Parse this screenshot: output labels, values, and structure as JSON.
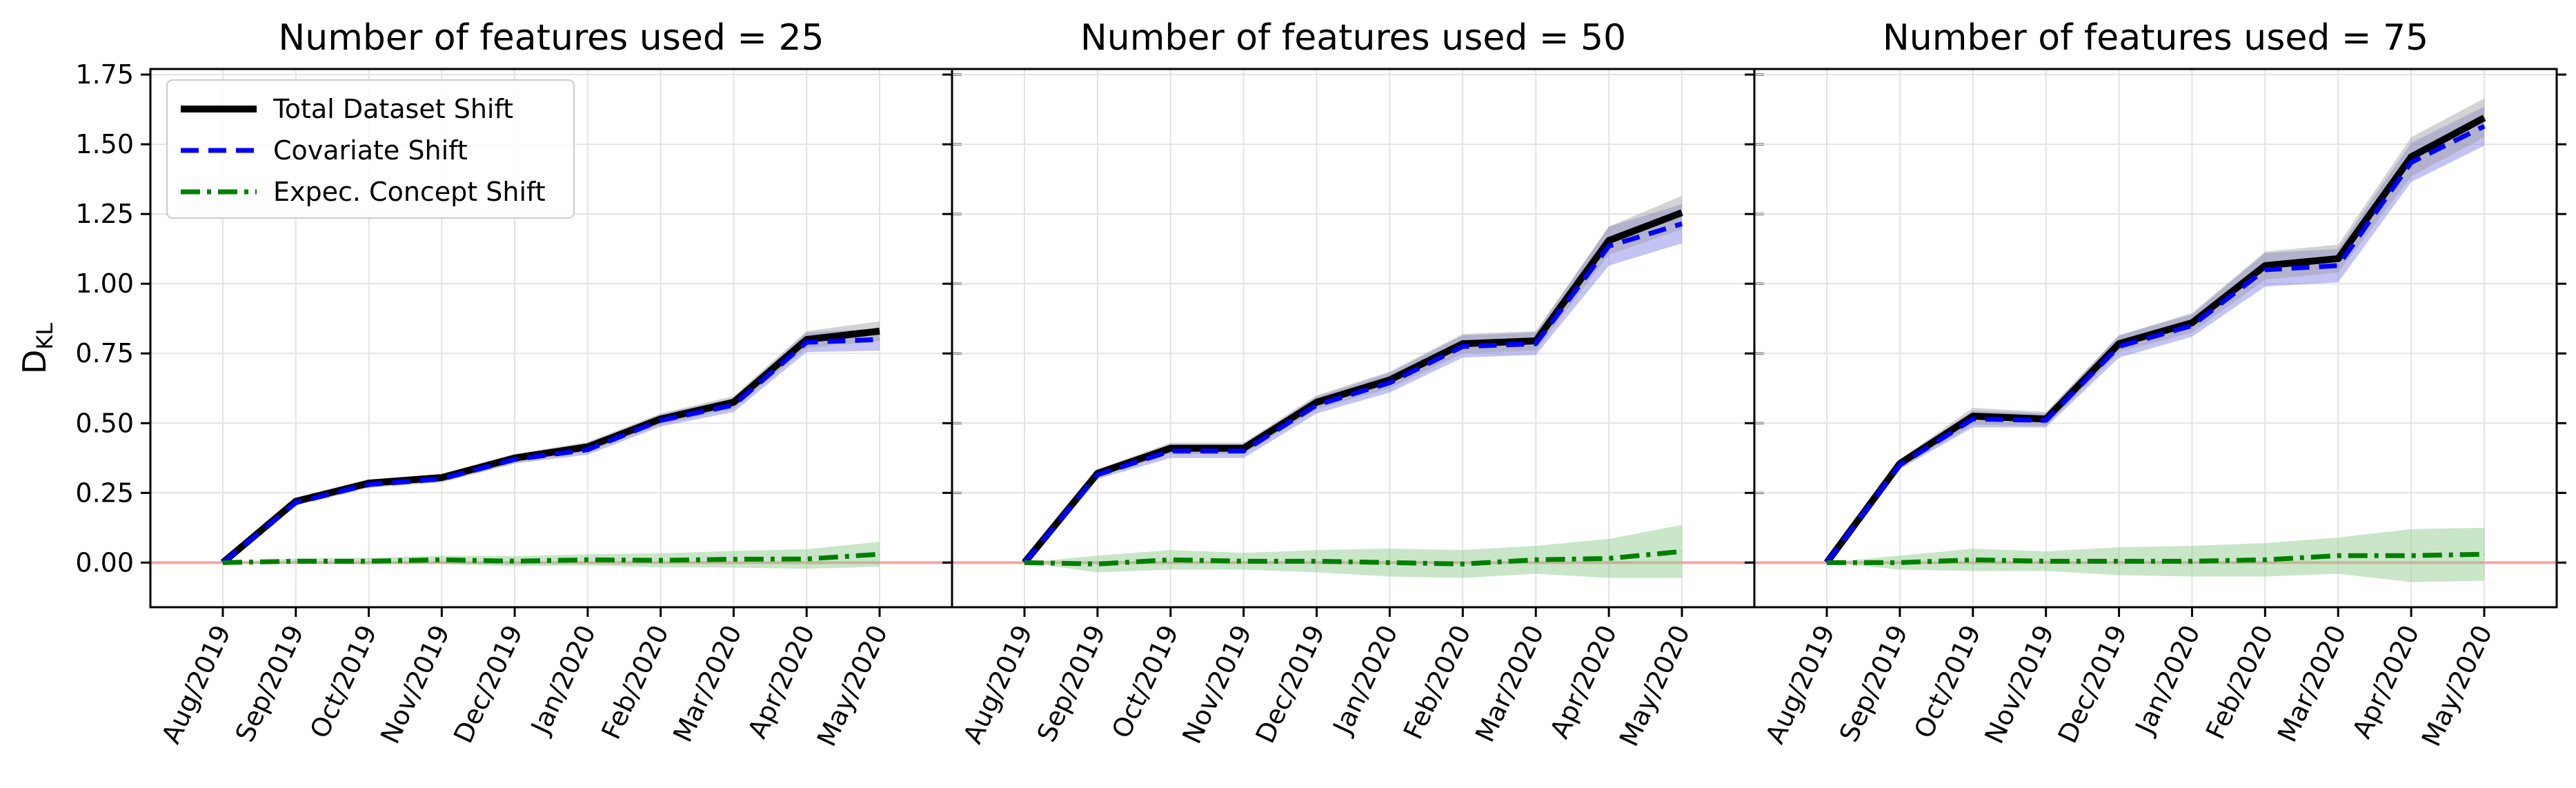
{
  "figure": {
    "ylabel_main": "D",
    "ylabel_sub": "KL"
  },
  "chart_data": {
    "type": "line",
    "shared": {
      "categories": [
        "Aug/2019",
        "Sep/2019",
        "Oct/2019",
        "Nov/2019",
        "Dec/2019",
        "Jan/2020",
        "Feb/2020",
        "Mar/2020",
        "Apr/2020",
        "May/2020"
      ],
      "ylim": [
        -0.16,
        1.77
      ],
      "yticks": [
        0.0,
        0.25,
        0.5,
        0.75,
        1.0,
        1.25,
        1.5,
        1.75
      ],
      "ytick_labels": [
        "0.00",
        "0.25",
        "0.50",
        "0.75",
        "1.00",
        "1.25",
        "1.50",
        "1.75"
      ],
      "grid": true,
      "reference_line": {
        "y": 0,
        "color": "#f4a6a6"
      },
      "legend_placement": "top-left",
      "colors": {
        "total": "#000000",
        "covariate": "#0000ff",
        "concept": "#007f00",
        "total_band": "#9e9e9e",
        "covariate_band": "#7b7be6",
        "concept_band": "#88c888"
      },
      "legend": [
        {
          "key": "total",
          "label": "Total Dataset Shift",
          "style": "solid"
        },
        {
          "key": "covariate",
          "label": "Covariate Shift",
          "style": "dashed"
        },
        {
          "key": "concept",
          "label": "Expec. Concept Shift",
          "style": "dashdot"
        }
      ]
    },
    "panels": [
      {
        "title": "Number of features used = 25",
        "series": [
          {
            "name": "Total Dataset Shift",
            "key": "total",
            "values": [
              0.0,
              0.22,
              0.285,
              0.305,
              0.375,
              0.415,
              0.515,
              0.575,
              0.8,
              0.83
            ],
            "band": [
              0.0,
              0.01,
              0.012,
              0.012,
              0.015,
              0.018,
              0.02,
              0.022,
              0.03,
              0.035
            ]
          },
          {
            "name": "Covariate Shift",
            "key": "covariate",
            "values": [
              0.0,
              0.215,
              0.28,
              0.3,
              0.37,
              0.405,
              0.51,
              0.565,
              0.79,
              0.8
            ],
            "band": [
              0.0,
              0.01,
              0.012,
              0.012,
              0.015,
              0.018,
              0.022,
              0.025,
              0.035,
              0.04
            ]
          },
          {
            "name": "Expec. Concept Shift",
            "key": "concept",
            "values": [
              0.0,
              0.005,
              0.005,
              0.01,
              0.005,
              0.01,
              0.008,
              0.012,
              0.013,
              0.03
            ],
            "band": [
              0.0,
              0.01,
              0.012,
              0.015,
              0.018,
              0.02,
              0.025,
              0.03,
              0.035,
              0.045
            ]
          }
        ]
      },
      {
        "title": "Number of features used = 50",
        "series": [
          {
            "name": "Total Dataset Shift",
            "key": "total",
            "values": [
              0.0,
              0.32,
              0.41,
              0.41,
              0.575,
              0.655,
              0.785,
              0.795,
              1.155,
              1.255
            ],
            "band": [
              0.0,
              0.015,
              0.02,
              0.02,
              0.025,
              0.03,
              0.035,
              0.035,
              0.05,
              0.06
            ]
          },
          {
            "name": "Covariate Shift",
            "key": "covariate",
            "values": [
              0.0,
              0.315,
              0.4,
              0.4,
              0.565,
              0.645,
              0.775,
              0.785,
              1.135,
              1.215
            ],
            "band": [
              0.0,
              0.015,
              0.025,
              0.025,
              0.03,
              0.035,
              0.04,
              0.04,
              0.07,
              0.07
            ]
          },
          {
            "name": "Expec. Concept Shift",
            "key": "concept",
            "values": [
              0.0,
              -0.005,
              0.01,
              0.005,
              0.005,
              0.0,
              -0.005,
              0.01,
              0.015,
              0.04
            ],
            "band": [
              0.0,
              0.03,
              0.035,
              0.03,
              0.04,
              0.05,
              0.05,
              0.05,
              0.07,
              0.095
            ]
          }
        ]
      },
      {
        "title": "Number of features used = 75",
        "series": [
          {
            "name": "Total Dataset Shift",
            "key": "total",
            "values": [
              0.0,
              0.355,
              0.525,
              0.515,
              0.785,
              0.86,
              1.065,
              1.09,
              1.455,
              1.595
            ],
            "band": [
              0.0,
              0.015,
              0.03,
              0.025,
              0.03,
              0.035,
              0.05,
              0.05,
              0.07,
              0.07
            ]
          },
          {
            "name": "Covariate Shift",
            "key": "covariate",
            "values": [
              0.0,
              0.35,
              0.515,
              0.51,
              0.775,
              0.85,
              1.05,
              1.065,
              1.435,
              1.565
            ],
            "band": [
              0.0,
              0.015,
              0.03,
              0.025,
              0.04,
              0.04,
              0.06,
              0.06,
              0.07,
              0.07
            ]
          },
          {
            "name": "Expec. Concept Shift",
            "key": "concept",
            "values": [
              0.0,
              0.0,
              0.01,
              0.005,
              0.005,
              0.005,
              0.01,
              0.025,
              0.025,
              0.03
            ],
            "band": [
              0.0,
              0.025,
              0.04,
              0.035,
              0.05,
              0.055,
              0.06,
              0.065,
              0.095,
              0.095
            ]
          }
        ]
      }
    ]
  }
}
